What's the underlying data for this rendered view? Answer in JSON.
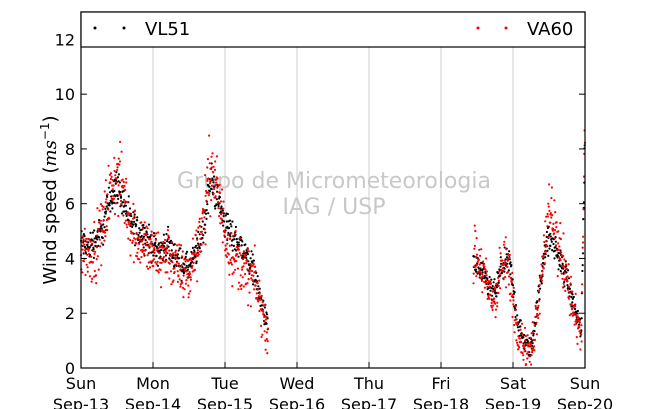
{
  "chart_data": {
    "type": "scatter",
    "ylabel": "Wind speed (",
    "ylabel_unit": "ms",
    "ylabel_exp": "−1",
    "ylabel_close": ")",
    "ylim": [
      0,
      13
    ],
    "xlim": [
      0,
      7
    ],
    "yticks": [
      0,
      2,
      4,
      6,
      8,
      10,
      12
    ],
    "x_ticks": [
      {
        "day": "Sun",
        "date": "Sep-13",
        "x": 0
      },
      {
        "day": "Mon",
        "date": "Sep-14",
        "x": 1
      },
      {
        "day": "Tue",
        "date": "Sep-15",
        "x": 2
      },
      {
        "day": "Wed",
        "date": "Sep-16",
        "x": 3
      },
      {
        "day": "Thu",
        "date": "Sep-17",
        "x": 4
      },
      {
        "day": "Fri",
        "date": "Sep-18",
        "x": 5
      },
      {
        "day": "Sat",
        "date": "Sep-19",
        "x": 6
      },
      {
        "day": "Sun",
        "date": "Sep-20",
        "x": 7
      }
    ],
    "grid": "vertical",
    "legend_placement": "top",
    "watermark": [
      "Grupo de Micrometeorologia",
      "IAG / USP"
    ],
    "series": [
      {
        "name": "VL51",
        "color": "#000000",
        "segments": [
          {
            "x": [
              0.0,
              0.1,
              0.2,
              0.3,
              0.4,
              0.5,
              0.6,
              0.7,
              0.8,
              0.9,
              1.0,
              1.1,
              1.2,
              1.3,
              1.4,
              1.5,
              1.6,
              1.7,
              1.8,
              1.9,
              2.0,
              2.1,
              2.2,
              2.3,
              2.4,
              2.5,
              2.6
            ],
            "y": [
              4.6,
              4.4,
              4.7,
              5.0,
              6.2,
              6.7,
              6.0,
              5.2,
              5.0,
              4.8,
              4.4,
              4.3,
              4.5,
              4.1,
              3.8,
              3.6,
              4.2,
              5.0,
              6.9,
              6.2,
              5.3,
              4.8,
              4.6,
              4.1,
              3.6,
              2.4,
              1.5
            ]
          },
          {
            "x": [
              5.45,
              5.55,
              5.65,
              5.75,
              5.85,
              5.95,
              6.05,
              6.15,
              6.25,
              6.35,
              6.45,
              6.55,
              6.65,
              6.75,
              6.85,
              6.95,
              7.0
            ],
            "y": [
              3.8,
              3.5,
              3.0,
              2.7,
              3.7,
              3.9,
              1.9,
              0.9,
              0.7,
              2.5,
              4.5,
              4.7,
              3.9,
              3.3,
              2.2,
              1.4,
              8.7
            ]
          }
        ]
      },
      {
        "name": "VA60",
        "color": "#ff0000",
        "segments": [
          {
            "x": [
              0.0,
              0.1,
              0.2,
              0.3,
              0.4,
              0.5,
              0.6,
              0.7,
              0.8,
              0.9,
              1.0,
              1.1,
              1.2,
              1.3,
              1.4,
              1.5,
              1.6,
              1.7,
              1.8,
              1.9,
              2.0,
              2.1,
              2.2,
              2.3,
              2.4,
              2.5,
              2.6
            ],
            "y": [
              4.5,
              4.2,
              4.3,
              5.1,
              6.4,
              7.0,
              6.3,
              5.1,
              4.7,
              4.5,
              4.1,
              4.0,
              4.3,
              3.7,
              3.5,
              3.3,
              4.4,
              5.4,
              7.4,
              6.4,
              4.9,
              4.2,
              3.9,
              3.4,
              3.3,
              2.2,
              1.2
            ]
          },
          {
            "x": [
              5.45,
              5.55,
              5.65,
              5.75,
              5.85,
              5.95,
              6.05,
              6.15,
              6.25,
              6.35,
              6.45,
              6.55,
              6.65,
              6.75,
              6.85,
              6.95,
              7.0
            ],
            "y": [
              4.1,
              3.8,
              2.8,
              2.5,
              3.8,
              3.5,
              1.6,
              0.8,
              0.6,
              2.4,
              4.9,
              5.6,
              4.2,
              3.4,
              1.9,
              1.1,
              9.2
            ]
          }
        ]
      }
    ]
  }
}
